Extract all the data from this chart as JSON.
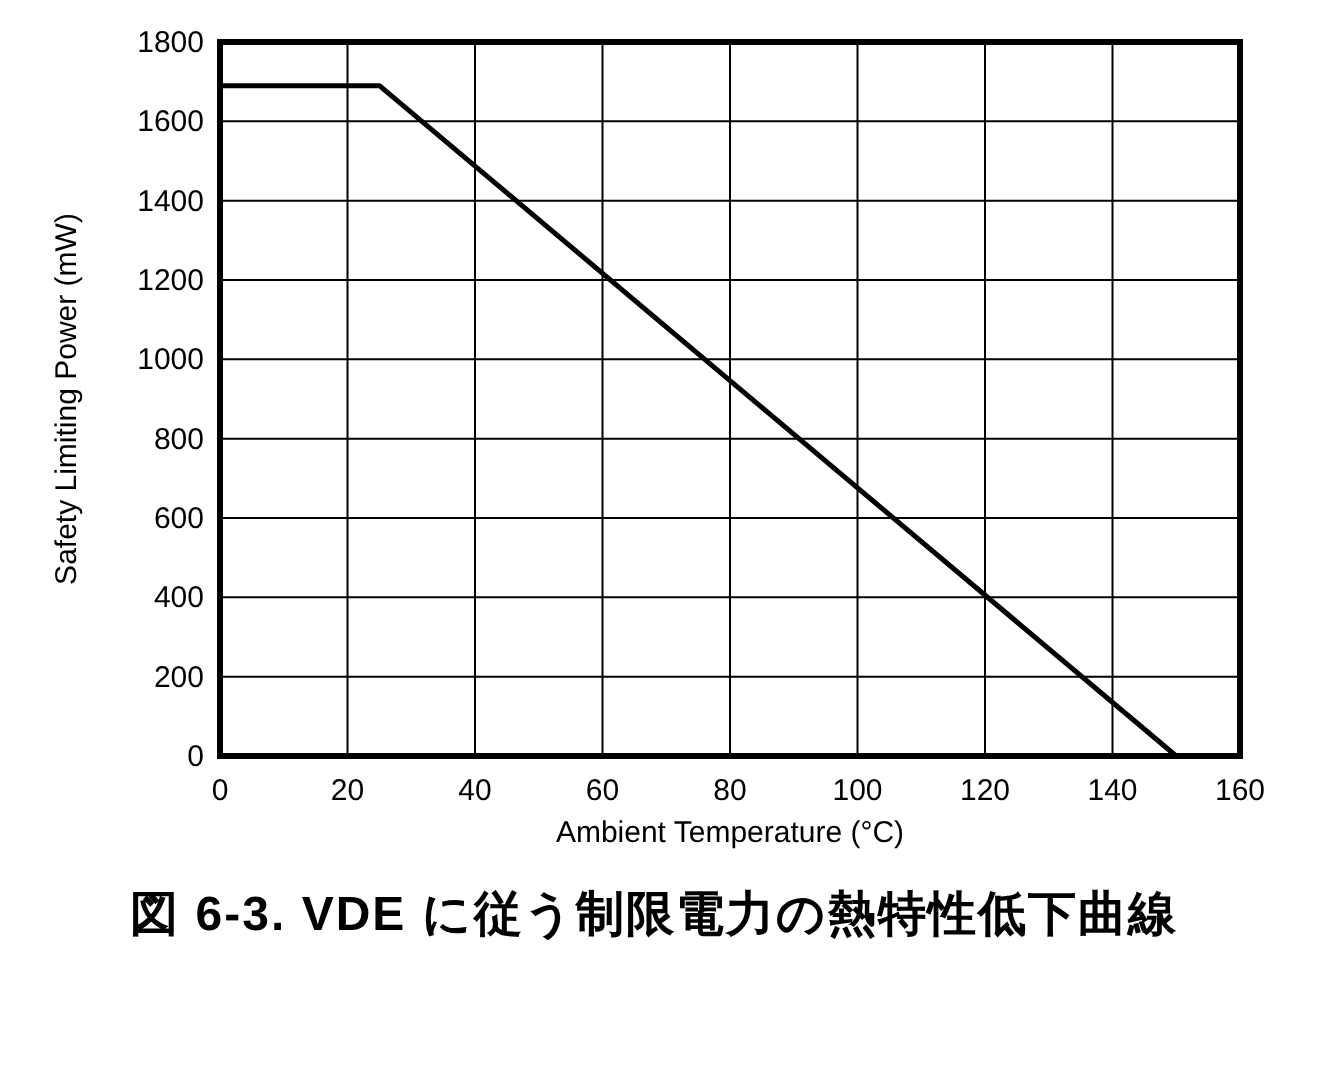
{
  "chart_data": {
    "type": "line",
    "title": "図 6-3. VDE に従う制限電力の熱特性低下曲線",
    "xlabel": "Ambient Temperature (°C)",
    "ylabel": "Safety Limiting Power (mW)",
    "x": [
      0,
      25,
      150
    ],
    "series": [
      {
        "color": "#000000",
        "values": [
          1690,
          1690,
          0
        ]
      }
    ],
    "xlim": [
      0,
      160
    ],
    "xticks": [
      0,
      20,
      40,
      60,
      80,
      100,
      120,
      140,
      160
    ],
    "ylim": [
      0,
      1800
    ],
    "yticks": [
      0,
      200,
      400,
      600,
      800,
      1000,
      1200,
      1400,
      1600,
      1800
    ],
    "grid": true,
    "marker": "none",
    "line_style": "solid"
  }
}
